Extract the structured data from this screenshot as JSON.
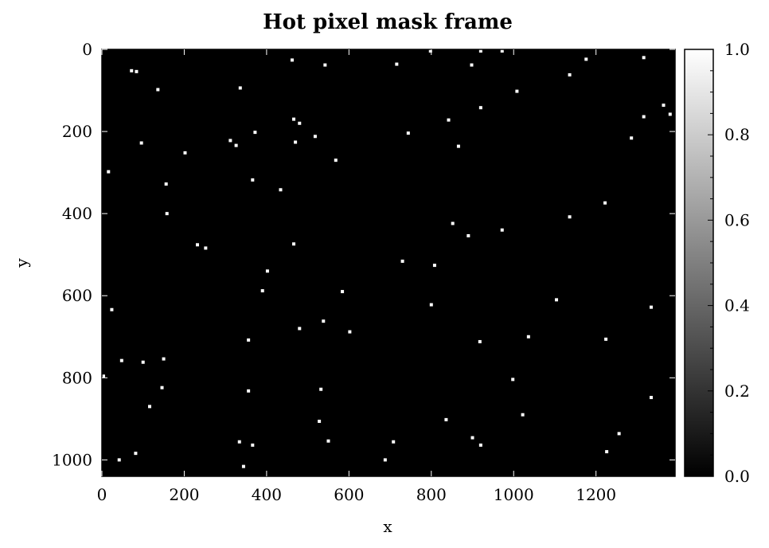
{
  "chart_data": {
    "type": "heatmap",
    "title": "Hot pixel mask frame",
    "xlabel": "x",
    "ylabel": "y",
    "xlim": [
      0,
      1392
    ],
    "ylim": [
      1040,
      0
    ],
    "x_ticks": [
      0,
      200,
      400,
      600,
      800,
      1000,
      1200
    ],
    "y_ticks": [
      0,
      200,
      400,
      600,
      800,
      1000
    ],
    "colormap": "gray",
    "background_value": 0.0,
    "pixel_value": 1.0,
    "colorbar": {
      "range": [
        0.0,
        1.0
      ],
      "ticks": [
        "0.0",
        "0.2",
        "0.4",
        "0.6",
        "0.8",
        "1.0"
      ]
    },
    "hot_pixels": [
      [
        798,
        0
      ],
      [
        920,
        0
      ],
      [
        972,
        0
      ],
      [
        462,
        26
      ],
      [
        1176,
        24
      ],
      [
        1316,
        20
      ],
      [
        72,
        52
      ],
      [
        84,
        54
      ],
      [
        716,
        36
      ],
      [
        542,
        38
      ],
      [
        898,
        38
      ],
      [
        1136,
        62
      ],
      [
        136,
        98
      ],
      [
        336,
        94
      ],
      [
        1008,
        102
      ],
      [
        1364,
        136
      ],
      [
        1380,
        158
      ],
      [
        920,
        142
      ],
      [
        1316,
        164
      ],
      [
        466,
        170
      ],
      [
        480,
        180
      ],
      [
        842,
        172
      ],
      [
        372,
        202
      ],
      [
        518,
        212
      ],
      [
        744,
        204
      ],
      [
        1286,
        216
      ],
      [
        96,
        228
      ],
      [
        312,
        222
      ],
      [
        326,
        234
      ],
      [
        470,
        226
      ],
      [
        866,
        236
      ],
      [
        202,
        252
      ],
      [
        568,
        270
      ],
      [
        16,
        298
      ],
      [
        366,
        318
      ],
      [
        156,
        328
      ],
      [
        434,
        342
      ],
      [
        1222,
        374
      ],
      [
        158,
        400
      ],
      [
        1136,
        408
      ],
      [
        852,
        424
      ],
      [
        890,
        454
      ],
      [
        972,
        440
      ],
      [
        232,
        476
      ],
      [
        252,
        484
      ],
      [
        466,
        474
      ],
      [
        730,
        516
      ],
      [
        808,
        526
      ],
      [
        402,
        540
      ],
      [
        390,
        588
      ],
      [
        584,
        590
      ],
      [
        1104,
        610
      ],
      [
        800,
        622
      ],
      [
        24,
        634
      ],
      [
        1334,
        628
      ],
      [
        538,
        662
      ],
      [
        480,
        680
      ],
      [
        602,
        688
      ],
      [
        356,
        708
      ],
      [
        918,
        712
      ],
      [
        1036,
        700
      ],
      [
        1224,
        706
      ],
      [
        48,
        758
      ],
      [
        100,
        762
      ],
      [
        150,
        754
      ],
      [
        0,
        796
      ],
      [
        998,
        804
      ],
      [
        146,
        824
      ],
      [
        356,
        832
      ],
      [
        532,
        828
      ],
      [
        116,
        870
      ],
      [
        1334,
        848
      ],
      [
        836,
        902
      ],
      [
        1022,
        890
      ],
      [
        528,
        906
      ],
      [
        334,
        956
      ],
      [
        366,
        964
      ],
      [
        550,
        954
      ],
      [
        708,
        956
      ],
      [
        900,
        946
      ],
      [
        920,
        964
      ],
      [
        1256,
        936
      ],
      [
        82,
        984
      ],
      [
        42,
        1000
      ],
      [
        1226,
        980
      ],
      [
        688,
        1000
      ],
      [
        344,
        1016
      ]
    ]
  }
}
